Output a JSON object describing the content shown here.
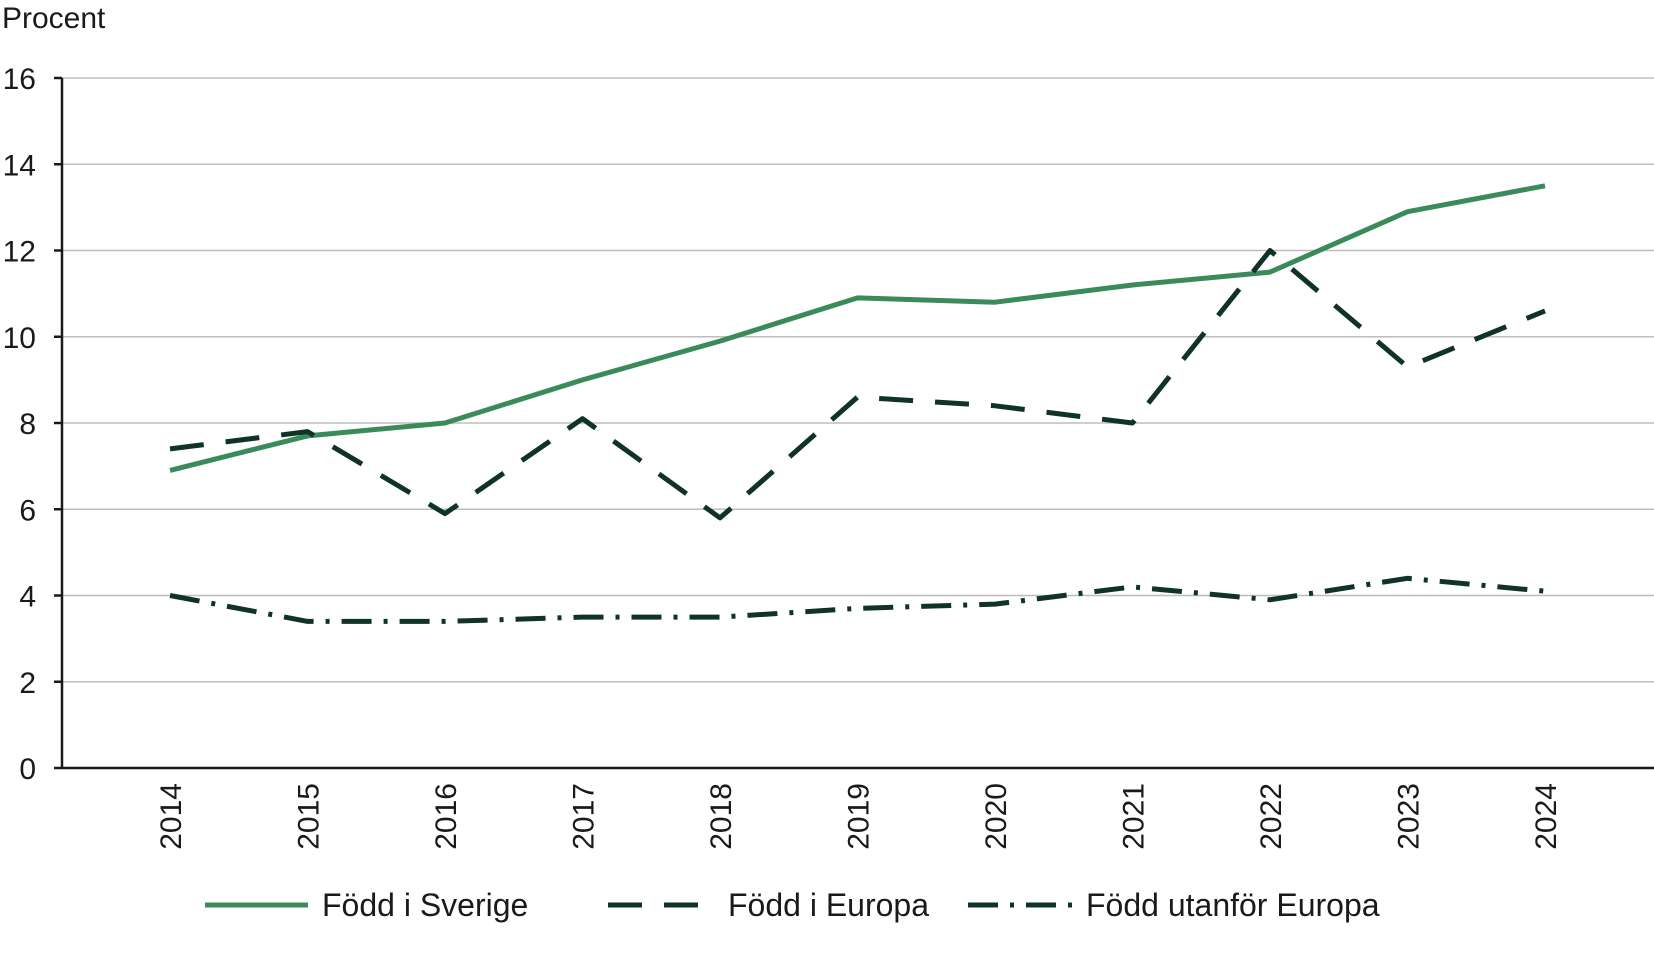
{
  "chart_data": {
    "type": "line",
    "title": "",
    "xlabel": "",
    "ylabel": "Procent",
    "ylim": [
      0,
      16
    ],
    "yticks": [
      0,
      2,
      4,
      6,
      8,
      10,
      12,
      14,
      16
    ],
    "grid": true,
    "legend_position": "bottom",
    "categories": [
      "2014",
      "2015",
      "2016",
      "2017",
      "2018",
      "2019",
      "2020",
      "2021",
      "2022",
      "2023",
      "2024"
    ],
    "series": [
      {
        "name": "Född i Sverige",
        "style": "solid",
        "color": "#3a8a5a",
        "values": [
          6.9,
          7.7,
          8.0,
          9.0,
          9.9,
          10.9,
          10.8,
          11.2,
          11.5,
          12.9,
          13.5
        ]
      },
      {
        "name": "Född i Europa",
        "style": "dashed",
        "color": "#0f3326",
        "values": [
          7.4,
          7.8,
          5.9,
          8.1,
          5.8,
          8.6,
          8.4,
          8.0,
          12.0,
          9.3,
          10.6
        ]
      },
      {
        "name": "Född utanför Europa",
        "style": "dashdot",
        "color": "#0f3326",
        "values": [
          4.0,
          3.4,
          3.4,
          3.5,
          3.5,
          3.7,
          3.8,
          4.2,
          3.9,
          4.4,
          4.1
        ]
      }
    ]
  }
}
